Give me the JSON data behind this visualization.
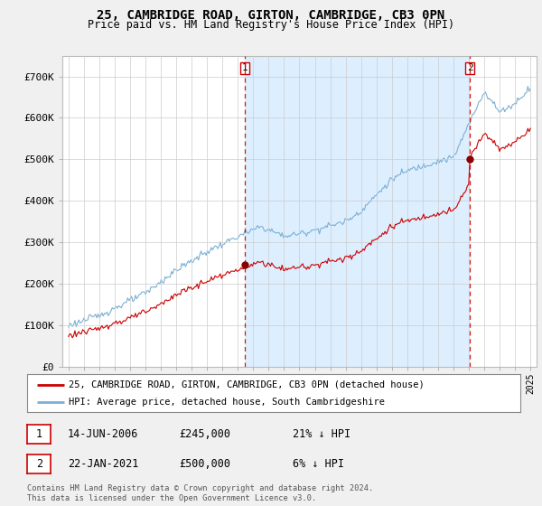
{
  "title_line1": "25, CAMBRIDGE ROAD, GIRTON, CAMBRIDGE, CB3 0PN",
  "title_line2": "Price paid vs. HM Land Registry's House Price Index (HPI)",
  "background_color": "#f0f0f0",
  "plot_bg_color": "#ffffff",
  "grid_color": "#cccccc",
  "ylim": [
    0,
    750000
  ],
  "yticks": [
    0,
    100000,
    200000,
    300000,
    400000,
    500000,
    600000,
    700000
  ],
  "ytick_labels": [
    "£0",
    "£100K",
    "£200K",
    "£300K",
    "£400K",
    "£500K",
    "£600K",
    "£700K"
  ],
  "sale1": {
    "date_num": 2006.45,
    "price": 245000,
    "label": "1"
  },
  "sale2": {
    "date_num": 2021.06,
    "price": 500000,
    "label": "2"
  },
  "legend_entry1": "25, CAMBRIDGE ROAD, GIRTON, CAMBRIDGE, CB3 0PN (detached house)",
  "legend_entry2": "HPI: Average price, detached house, South Cambridgeshire",
  "table_row1": [
    "1",
    "14-JUN-2006",
    "£245,000",
    "21% ↓ HPI"
  ],
  "table_row2": [
    "2",
    "22-JAN-2021",
    "£500,000",
    "6% ↓ HPI"
  ],
  "footer": "Contains HM Land Registry data © Crown copyright and database right 2024.\nThis data is licensed under the Open Government Licence v3.0.",
  "line_red_color": "#cc0000",
  "line_blue_color": "#7ab0d4",
  "shade_color": "#ddeeff",
  "xstart": 1995,
  "xend": 2025
}
